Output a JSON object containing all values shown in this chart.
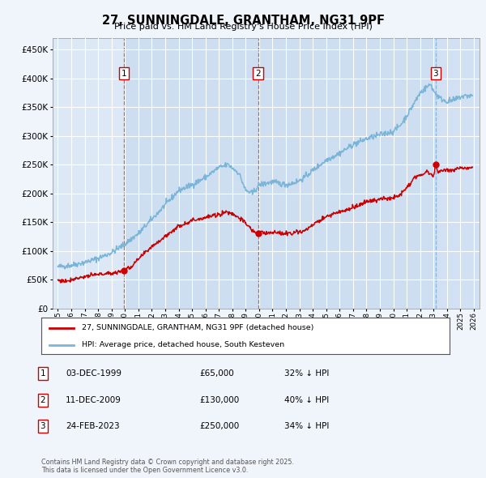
{
  "title": "27, SUNNINGDALE, GRANTHAM, NG31 9PF",
  "subtitle": "Price paid vs. HM Land Registry's House Price Index (HPI)",
  "background_color": "#f0f4fb",
  "plot_bg_color": "#dce8f5",
  "shade_color": "#c8daf0",
  "ylim": [
    0,
    470000
  ],
  "yticks": [
    0,
    50000,
    100000,
    150000,
    200000,
    250000,
    300000,
    350000,
    400000,
    450000
  ],
  "xlim_start": 1994.6,
  "xlim_end": 2026.4,
  "xtick_years": [
    1995,
    1996,
    1997,
    1998,
    1999,
    2000,
    2001,
    2002,
    2003,
    2004,
    2005,
    2006,
    2007,
    2008,
    2009,
    2010,
    2011,
    2012,
    2013,
    2014,
    2015,
    2016,
    2017,
    2018,
    2019,
    2020,
    2021,
    2022,
    2023,
    2024,
    2025,
    2026
  ],
  "sale_dates": [
    1999.92,
    2009.92,
    2023.15
  ],
  "sale_prices": [
    65000,
    130000,
    250000
  ],
  "sale_labels": [
    "1",
    "2",
    "3"
  ],
  "vline_styles": [
    "red_dashed",
    "red_dashed",
    "blue_dashed"
  ],
  "legend_red": "27, SUNNINGDALE, GRANTHAM, NG31 9PF (detached house)",
  "legend_blue": "HPI: Average price, detached house, South Kesteven",
  "table_rows": [
    {
      "num": "1",
      "date": "03-DEC-1999",
      "price": "£65,000",
      "hpi": "32% ↓ HPI"
    },
    {
      "num": "2",
      "date": "11-DEC-2009",
      "price": "£130,000",
      "hpi": "40% ↓ HPI"
    },
    {
      "num": "3",
      "date": "24-FEB-2023",
      "price": "£250,000",
      "hpi": "34% ↓ HPI"
    }
  ],
  "footer": "Contains HM Land Registry data © Crown copyright and database right 2025.\nThis data is licensed under the Open Government Licence v3.0.",
  "red_color": "#cc0000",
  "blue_color": "#7ab5d8",
  "vline_red_color": "#dd3333",
  "vline_blue_color": "#7ab5d8"
}
